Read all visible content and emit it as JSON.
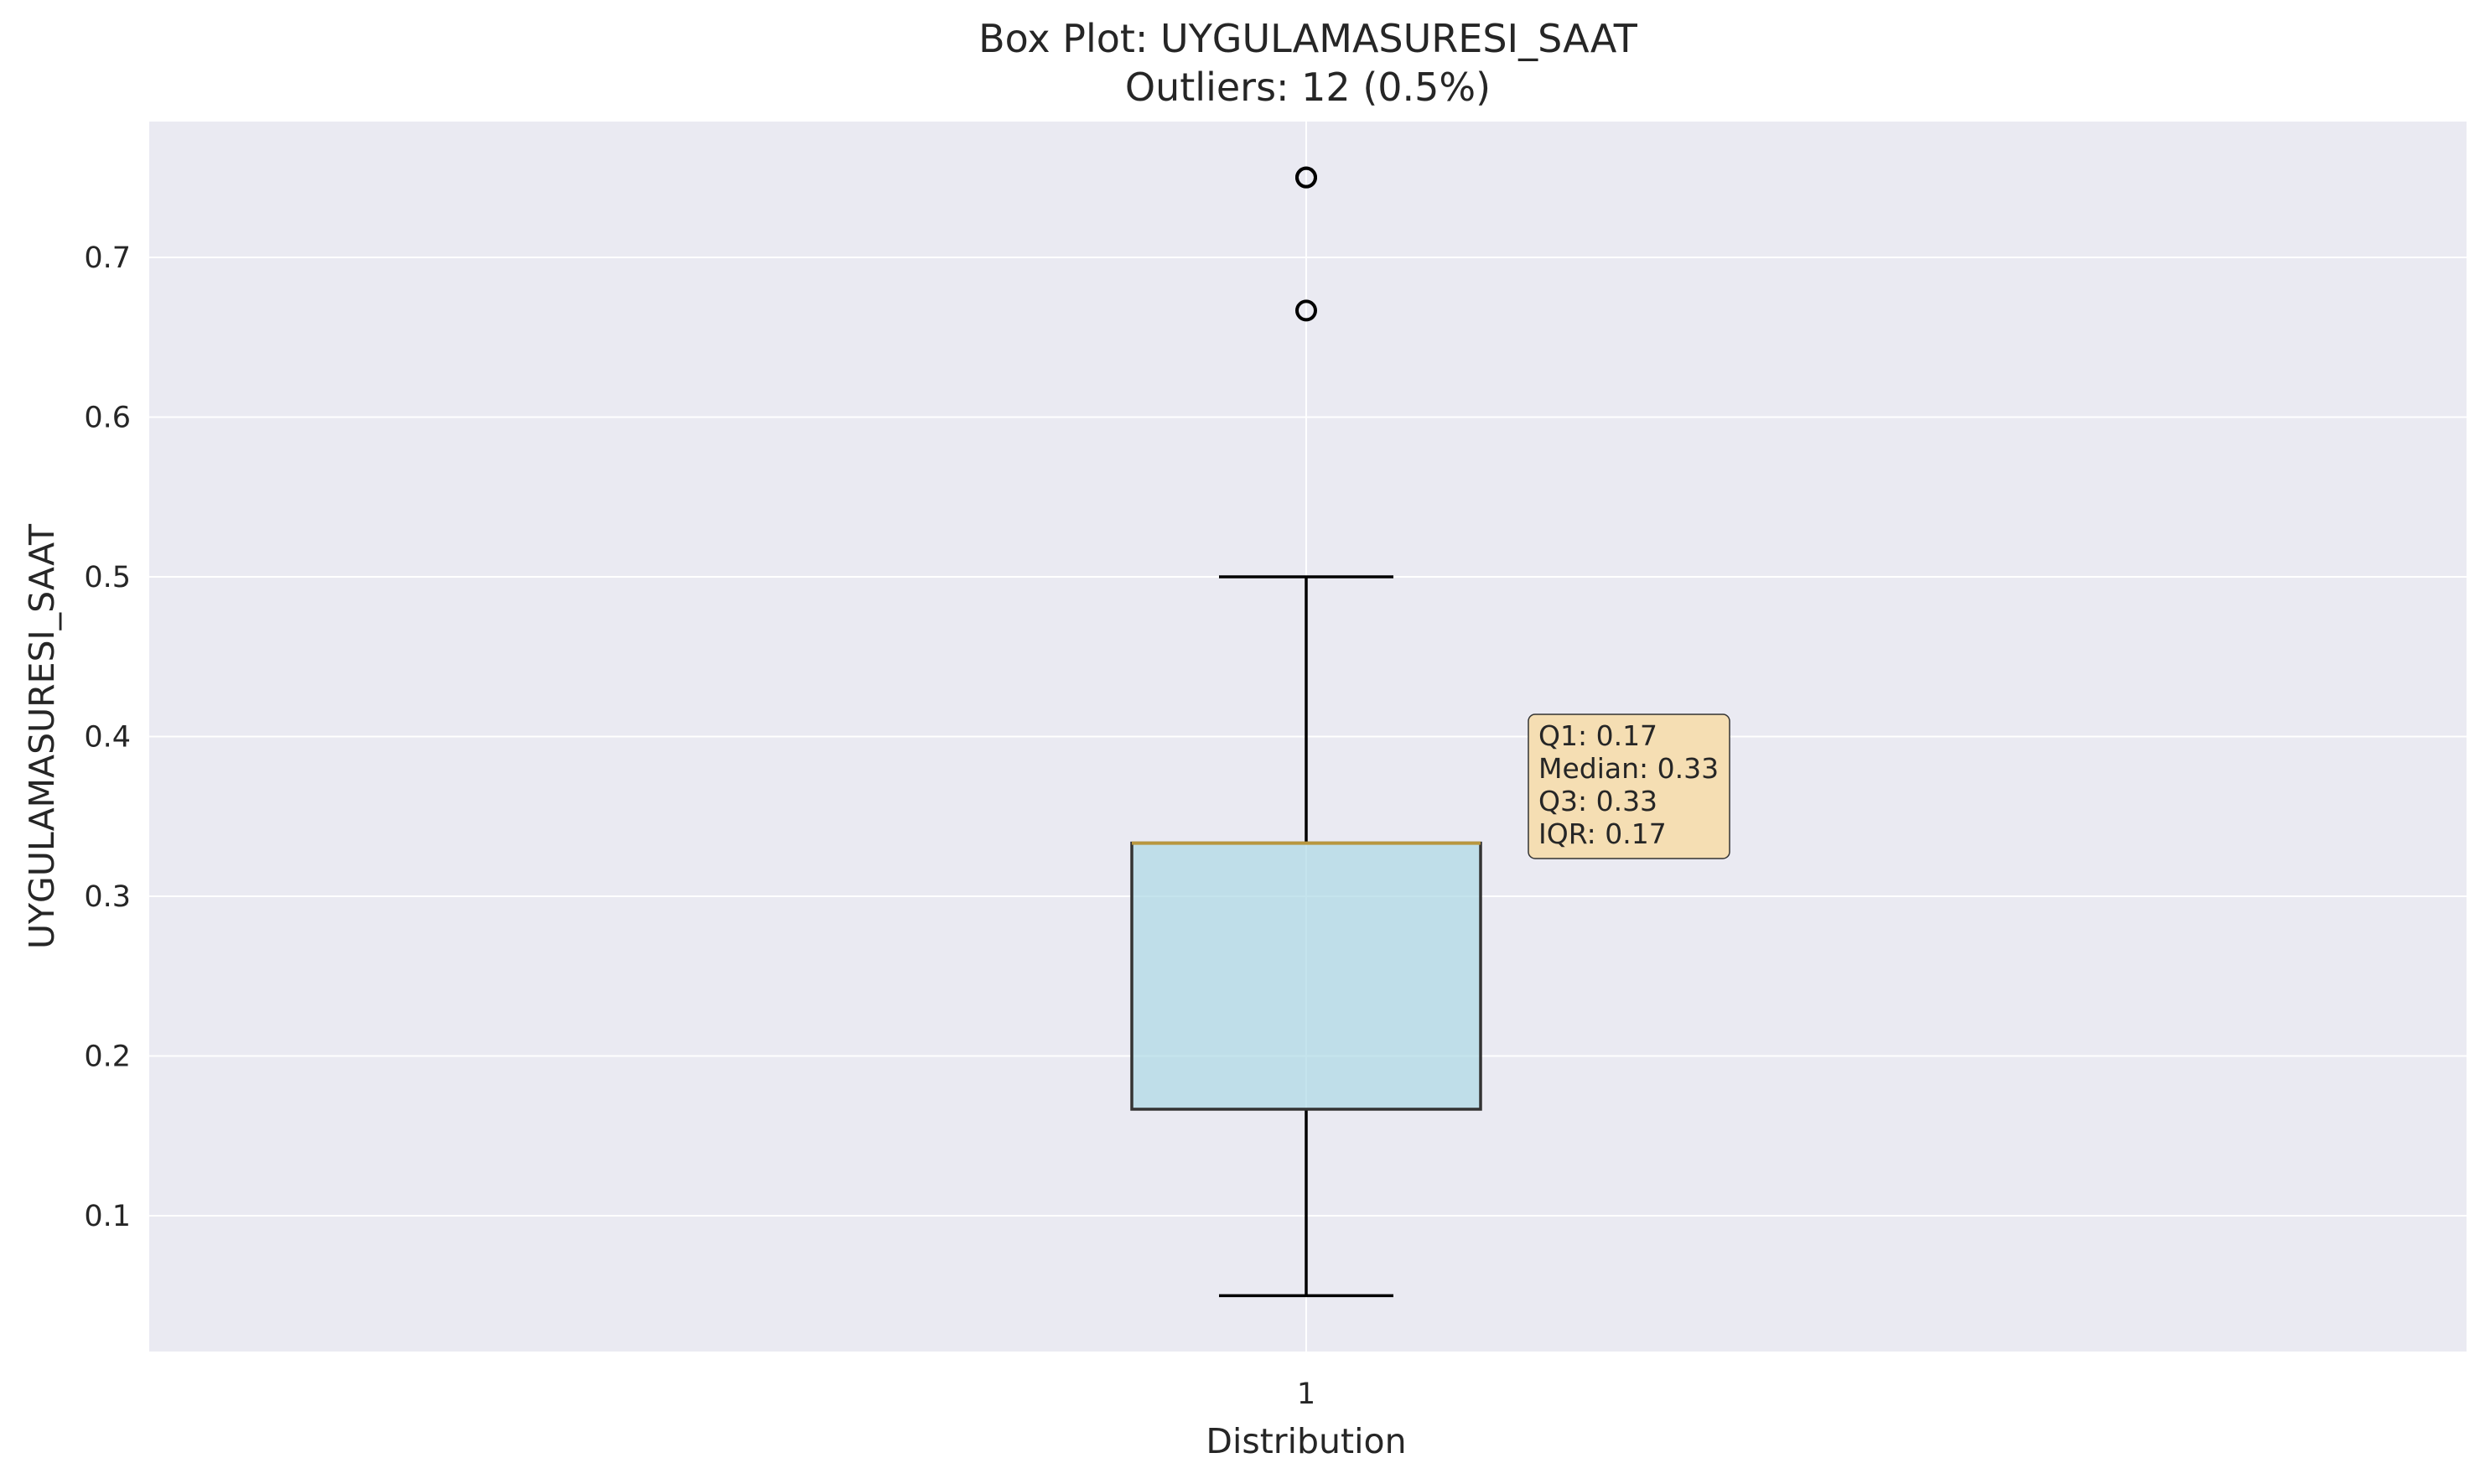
{
  "chart_data": {
    "type": "box",
    "title": "Box Plot: UYGULAMASURESI_SAAT",
    "subtitle": "Outliers: 12 (0.5%)",
    "xlabel": "Distribution",
    "ylabel": "UYGULAMASURESI_SAAT",
    "categories": [
      "1"
    ],
    "ylim": [
      0.015,
      0.785
    ],
    "yticks": [
      0.1,
      0.2,
      0.3,
      0.4,
      0.5,
      0.6,
      0.7
    ],
    "ytick_labels": [
      "0.1",
      "0.2",
      "0.3",
      "0.4",
      "0.5",
      "0.6",
      "0.7"
    ],
    "box": {
      "whisker_low": 0.05,
      "q1": 0.1667,
      "median": 0.3333,
      "q3": 0.3333,
      "whisker_high": 0.5,
      "outliers": [
        0.6667,
        0.75,
        0.75
      ]
    },
    "annotation_lines": [
      "Q1: 0.17",
      "Median: 0.33",
      "Q3: 0.33",
      "IQR: 0.17"
    ],
    "grid": true,
    "colors": {
      "plot_background": "#eaeaf2",
      "grid": "#ffffff",
      "box_fill": "#add8e6",
      "box_edge": "#333333",
      "median": "#b8963e",
      "whisker": "#000000",
      "annotation_fill": "#f5deb3",
      "annotation_edge": "#333333"
    }
  }
}
